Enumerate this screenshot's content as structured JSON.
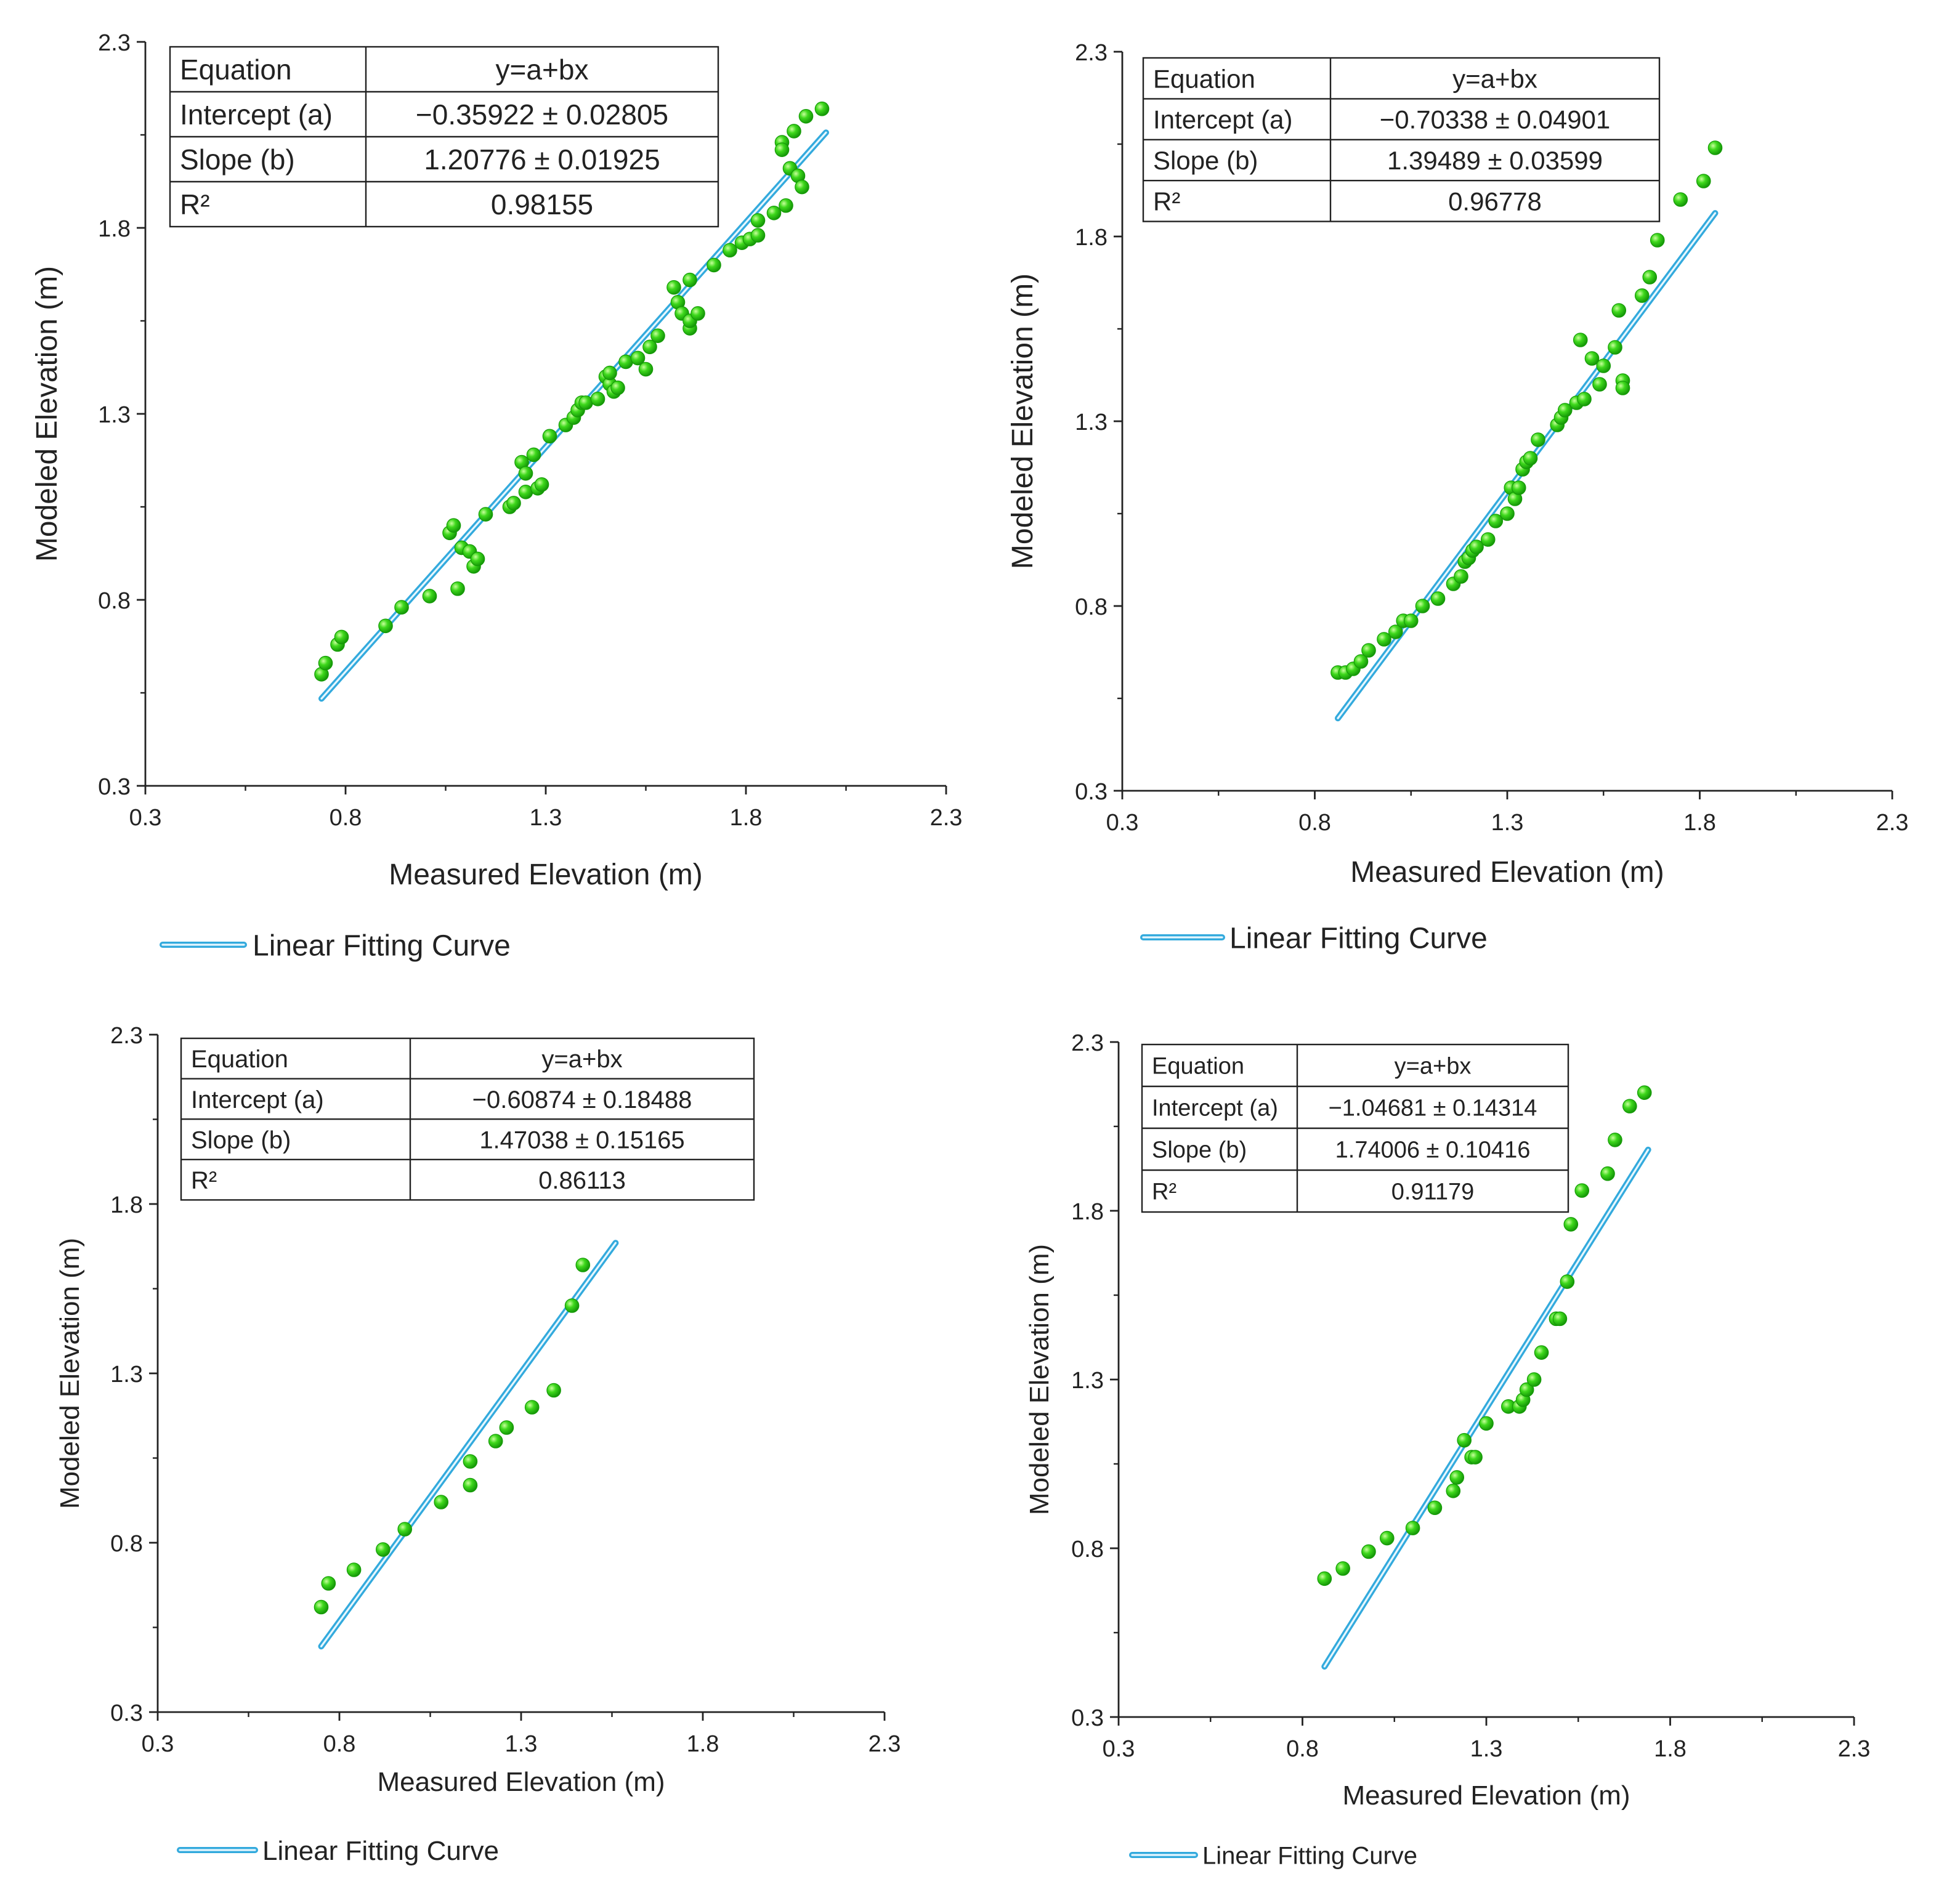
{
  "axis_ticks": [
    "0.3",
    "0.8",
    "1.3",
    "1.8",
    "2.3"
  ],
  "colors": {
    "point": "#22cc11",
    "point_highlight": "#b9ff9a",
    "fit_line": "#33aadd",
    "fit_inner": "#e6f7ff",
    "axis": "#222222"
  },
  "table_headers": {
    "equation": "Equation",
    "intercept": "Intercept (a)",
    "slope": "Slope (b)",
    "r2": "R²"
  },
  "chart_data": [
    {
      "type": "scatter",
      "title": "",
      "xlabel": "Measured Elevation (m)",
      "ylabel": "Modeled Elevation (m)",
      "xlim": [
        0.3,
        2.3
      ],
      "ylim": [
        0.3,
        2.3
      ],
      "legend": "Linear Fitting Curve",
      "legend_position": "below",
      "fit": {
        "equation": "y=a+bx",
        "intercept": "−0.35922 ± 0.02805",
        "slope": "1.20776 ± 0.01925",
        "r2": "0.98155",
        "a": -0.35922,
        "b": 1.20776,
        "x_range": [
          0.74,
          2.0
        ]
      },
      "points": [
        [
          0.74,
          0.6
        ],
        [
          0.75,
          0.63
        ],
        [
          0.78,
          0.68
        ],
        [
          0.79,
          0.7
        ],
        [
          0.9,
          0.73
        ],
        [
          0.94,
          0.78
        ],
        [
          1.01,
          0.81
        ],
        [
          1.06,
          0.98
        ],
        [
          1.07,
          1.0
        ],
        [
          1.08,
          0.83
        ],
        [
          1.09,
          0.94
        ],
        [
          1.11,
          0.93
        ],
        [
          1.12,
          0.89
        ],
        [
          1.13,
          0.91
        ],
        [
          1.15,
          1.03
        ],
        [
          1.21,
          1.05
        ],
        [
          1.22,
          1.06
        ],
        [
          1.24,
          1.17
        ],
        [
          1.25,
          1.09
        ],
        [
          1.25,
          1.14
        ],
        [
          1.27,
          1.19
        ],
        [
          1.28,
          1.1
        ],
        [
          1.29,
          1.11
        ],
        [
          1.31,
          1.24
        ],
        [
          1.35,
          1.27
        ],
        [
          1.37,
          1.29
        ],
        [
          1.38,
          1.31
        ],
        [
          1.39,
          1.33
        ],
        [
          1.4,
          1.33
        ],
        [
          1.43,
          1.34
        ],
        [
          1.45,
          1.4
        ],
        [
          1.46,
          1.38
        ],
        [
          1.46,
          1.41
        ],
        [
          1.47,
          1.36
        ],
        [
          1.48,
          1.37
        ],
        [
          1.5,
          1.44
        ],
        [
          1.53,
          1.45
        ],
        [
          1.55,
          1.42
        ],
        [
          1.56,
          1.48
        ],
        [
          1.58,
          1.51
        ],
        [
          1.62,
          1.64
        ],
        [
          1.63,
          1.6
        ],
        [
          1.64,
          1.57
        ],
        [
          1.66,
          1.66
        ],
        [
          1.66,
          1.53
        ],
        [
          1.66,
          1.55
        ],
        [
          1.68,
          1.57
        ],
        [
          1.72,
          1.7
        ],
        [
          1.76,
          1.74
        ],
        [
          1.79,
          1.76
        ],
        [
          1.81,
          1.77
        ],
        [
          1.83,
          1.78
        ],
        [
          1.83,
          1.82
        ],
        [
          1.87,
          1.84
        ],
        [
          1.89,
          2.03
        ],
        [
          1.89,
          2.01
        ],
        [
          1.9,
          1.86
        ],
        [
          1.91,
          1.96
        ],
        [
          1.92,
          2.06
        ],
        [
          1.93,
          1.94
        ],
        [
          1.94,
          1.91
        ],
        [
          1.95,
          2.1
        ],
        [
          1.99,
          2.12
        ]
      ]
    },
    {
      "type": "scatter",
      "title": "",
      "xlabel": "Measured Elevation (m)",
      "ylabel": "Modeled Elevation (m)",
      "xlim": [
        0.3,
        2.3
      ],
      "ylim": [
        0.3,
        2.3
      ],
      "legend": "Linear Fitting Curve",
      "legend_position": "below",
      "fit": {
        "equation": "y=a+bx",
        "intercept": "−0.70338 ± 0.04901",
        "slope": "1.39489 ± 0.03599",
        "r2": "0.96778",
        "a": -0.70338,
        "b": 1.39489,
        "x_range": [
          0.86,
          1.84
        ]
      },
      "points": [
        [
          0.86,
          0.62
        ],
        [
          0.88,
          0.62
        ],
        [
          0.9,
          0.63
        ],
        [
          0.92,
          0.65
        ],
        [
          0.94,
          0.68
        ],
        [
          0.98,
          0.71
        ],
        [
          1.01,
          0.73
        ],
        [
          1.03,
          0.76
        ],
        [
          1.05,
          0.76
        ],
        [
          1.08,
          0.8
        ],
        [
          1.12,
          0.82
        ],
        [
          1.16,
          0.86
        ],
        [
          1.18,
          0.88
        ],
        [
          1.19,
          0.92
        ],
        [
          1.2,
          0.93
        ],
        [
          1.21,
          0.95
        ],
        [
          1.22,
          0.96
        ],
        [
          1.25,
          0.98
        ],
        [
          1.27,
          1.03
        ],
        [
          1.3,
          1.05
        ],
        [
          1.31,
          1.12
        ],
        [
          1.32,
          1.09
        ],
        [
          1.33,
          1.12
        ],
        [
          1.34,
          1.17
        ],
        [
          1.35,
          1.19
        ],
        [
          1.36,
          1.2
        ],
        [
          1.38,
          1.25
        ],
        [
          1.43,
          1.29
        ],
        [
          1.44,
          1.31
        ],
        [
          1.45,
          1.33
        ],
        [
          1.48,
          1.35
        ],
        [
          1.49,
          1.52
        ],
        [
          1.5,
          1.36
        ],
        [
          1.52,
          1.47
        ],
        [
          1.54,
          1.4
        ],
        [
          1.55,
          1.45
        ],
        [
          1.58,
          1.5
        ],
        [
          1.59,
          1.6
        ],
        [
          1.6,
          1.41
        ],
        [
          1.6,
          1.39
        ],
        [
          1.65,
          1.64
        ],
        [
          1.67,
          1.69
        ],
        [
          1.69,
          1.79
        ],
        [
          1.75,
          1.9
        ],
        [
          1.81,
          1.95
        ],
        [
          1.84,
          2.04
        ]
      ]
    },
    {
      "type": "scatter",
      "title": "",
      "xlabel": "Measured Elevation (m)",
      "ylabel": "Modeled Elevation (m)",
      "xlim": [
        0.3,
        2.3
      ],
      "ylim": [
        0.3,
        2.3
      ],
      "legend": "Linear Fitting Curve",
      "legend_position": "below",
      "fit": {
        "equation": "y=a+bx",
        "intercept": "−0.60874 ± 0.18488",
        "slope": "1.47038 ± 0.15165",
        "r2": "0.86113",
        "a": -0.60874,
        "b": 1.47038,
        "x_range": [
          0.75,
          1.56
        ]
      },
      "points": [
        [
          0.75,
          0.61
        ],
        [
          0.77,
          0.68
        ],
        [
          0.84,
          0.72
        ],
        [
          0.92,
          0.78
        ],
        [
          0.98,
          0.84
        ],
        [
          1.08,
          0.92
        ],
        [
          1.16,
          0.97
        ],
        [
          1.16,
          1.04
        ],
        [
          1.23,
          1.1
        ],
        [
          1.26,
          1.14
        ],
        [
          1.33,
          1.2
        ],
        [
          1.39,
          1.25
        ],
        [
          1.44,
          1.5
        ],
        [
          1.47,
          1.62
        ]
      ]
    },
    {
      "type": "scatter",
      "title": "",
      "xlabel": "Measured Elevation (m)",
      "ylabel": "Modeled Elevation (m)",
      "xlim": [
        0.3,
        2.3
      ],
      "ylim": [
        0.3,
        2.3
      ],
      "legend": "Linear Fitting Curve",
      "legend_position": "below",
      "fit": {
        "equation": "y=a+bx",
        "intercept": "−1.04681 ± 0.14314",
        "slope": "1.74006 ± 0.10416",
        "r2": "0.91179",
        "a": -1.04681,
        "b": 1.74006,
        "x_range": [
          0.86,
          1.74
        ]
      },
      "points": [
        [
          0.86,
          0.71
        ],
        [
          0.91,
          0.74
        ],
        [
          0.98,
          0.79
        ],
        [
          1.03,
          0.83
        ],
        [
          1.1,
          0.86
        ],
        [
          1.16,
          0.92
        ],
        [
          1.21,
          0.97
        ],
        [
          1.22,
          1.01
        ],
        [
          1.24,
          1.12
        ],
        [
          1.26,
          1.07
        ],
        [
          1.27,
          1.07
        ],
        [
          1.3,
          1.17
        ],
        [
          1.36,
          1.22
        ],
        [
          1.39,
          1.22
        ],
        [
          1.4,
          1.24
        ],
        [
          1.41,
          1.27
        ],
        [
          1.43,
          1.3
        ],
        [
          1.45,
          1.38
        ],
        [
          1.49,
          1.48
        ],
        [
          1.5,
          1.48
        ],
        [
          1.52,
          1.59
        ],
        [
          1.53,
          1.76
        ],
        [
          1.56,
          1.86
        ],
        [
          1.63,
          1.91
        ],
        [
          1.65,
          2.01
        ],
        [
          1.69,
          2.11
        ],
        [
          1.73,
          2.15
        ]
      ]
    }
  ]
}
